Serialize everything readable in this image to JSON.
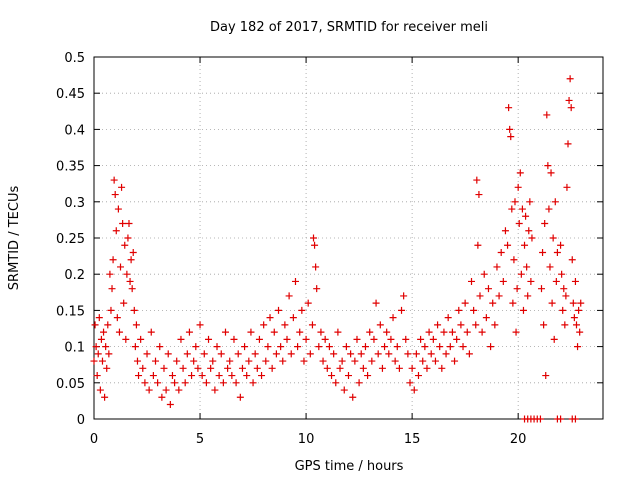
{
  "chart_data": {
    "type": "scatter",
    "title": "Day 182 of 2017, SRMTID for receiver meli",
    "xlabel": "GPS time / hours",
    "ylabel": "SRMTID / TECUs",
    "xlim": [
      0,
      24
    ],
    "ylim": [
      0,
      0.5
    ],
    "x_ticks": [
      0,
      5,
      10,
      15,
      20
    ],
    "x_tick_labels": [
      "0",
      "5",
      "10",
      "15",
      "20"
    ],
    "y_ticks": [
      0,
      0.05,
      0.1,
      0.15,
      0.2,
      0.25,
      0.3,
      0.35,
      0.4,
      0.45,
      0.5
    ],
    "y_tick_labels": [
      "0",
      "0.05",
      "0.1",
      "0.15",
      "0.2",
      "0.25",
      "0.3",
      "0.35",
      "0.4",
      "0.45",
      "0.5"
    ],
    "grid": true,
    "marker": "+",
    "color": "#e00000",
    "series": [
      {
        "points": [
          [
            0.0,
            0.08
          ],
          [
            0.05,
            0.13
          ],
          [
            0.1,
            0.1
          ],
          [
            0.15,
            0.06
          ],
          [
            0.2,
            0.09
          ],
          [
            0.25,
            0.14
          ],
          [
            0.3,
            0.04
          ],
          [
            0.35,
            0.11
          ],
          [
            0.4,
            0.08
          ],
          [
            0.45,
            0.12
          ],
          [
            0.5,
            0.03
          ],
          [
            0.55,
            0.1
          ],
          [
            0.6,
            0.07
          ],
          [
            0.65,
            0.13
          ],
          [
            0.7,
            0.09
          ],
          [
            0.75,
            0.2
          ],
          [
            0.8,
            0.15
          ],
          [
            0.85,
            0.18
          ],
          [
            0.9,
            0.22
          ],
          [
            0.95,
            0.33
          ],
          [
            1.0,
            0.31
          ],
          [
            1.05,
            0.26
          ],
          [
            1.1,
            0.14
          ],
          [
            1.15,
            0.29
          ],
          [
            1.2,
            0.12
          ],
          [
            1.25,
            0.21
          ],
          [
            1.3,
            0.32
          ],
          [
            1.35,
            0.27
          ],
          [
            1.4,
            0.16
          ],
          [
            1.45,
            0.24
          ],
          [
            1.5,
            0.11
          ],
          [
            1.55,
            0.2
          ],
          [
            1.6,
            0.25
          ],
          [
            1.65,
            0.27
          ],
          [
            1.7,
            0.19
          ],
          [
            1.75,
            0.22
          ],
          [
            1.8,
            0.18
          ],
          [
            1.85,
            0.23
          ],
          [
            1.9,
            0.15
          ],
          [
            1.95,
            0.1
          ],
          [
            2.0,
            0.13
          ],
          [
            2.05,
            0.08
          ],
          [
            2.1,
            0.06
          ],
          [
            2.2,
            0.11
          ],
          [
            2.3,
            0.07
          ],
          [
            2.4,
            0.05
          ],
          [
            2.5,
            0.09
          ],
          [
            2.6,
            0.04
          ],
          [
            2.7,
            0.12
          ],
          [
            2.8,
            0.06
          ],
          [
            2.9,
            0.08
          ],
          [
            3.0,
            0.05
          ],
          [
            3.1,
            0.1
          ],
          [
            3.2,
            0.03
          ],
          [
            3.3,
            0.07
          ],
          [
            3.4,
            0.04
          ],
          [
            3.5,
            0.09
          ],
          [
            3.6,
            0.02
          ],
          [
            3.7,
            0.06
          ],
          [
            3.8,
            0.05
          ],
          [
            3.9,
            0.08
          ],
          [
            4.0,
            0.04
          ],
          [
            4.1,
            0.11
          ],
          [
            4.2,
            0.07
          ],
          [
            4.3,
            0.05
          ],
          [
            4.4,
            0.09
          ],
          [
            4.5,
            0.12
          ],
          [
            4.6,
            0.06
          ],
          [
            4.7,
            0.08
          ],
          [
            4.8,
            0.1
          ],
          [
            4.9,
            0.07
          ],
          [
            5.0,
            0.13
          ],
          [
            5.1,
            0.06
          ],
          [
            5.2,
            0.09
          ],
          [
            5.3,
            0.05
          ],
          [
            5.4,
            0.11
          ],
          [
            5.5,
            0.07
          ],
          [
            5.6,
            0.08
          ],
          [
            5.7,
            0.04
          ],
          [
            5.8,
            0.1
          ],
          [
            5.9,
            0.06
          ],
          [
            6.0,
            0.09
          ],
          [
            6.1,
            0.05
          ],
          [
            6.2,
            0.12
          ],
          [
            6.3,
            0.07
          ],
          [
            6.4,
            0.08
          ],
          [
            6.5,
            0.06
          ],
          [
            6.6,
            0.11
          ],
          [
            6.7,
            0.05
          ],
          [
            6.8,
            0.09
          ],
          [
            6.9,
            0.03
          ],
          [
            7.0,
            0.07
          ],
          [
            7.1,
            0.1
          ],
          [
            7.2,
            0.06
          ],
          [
            7.3,
            0.08
          ],
          [
            7.4,
            0.12
          ],
          [
            7.5,
            0.05
          ],
          [
            7.6,
            0.09
          ],
          [
            7.7,
            0.07
          ],
          [
            7.8,
            0.11
          ],
          [
            7.9,
            0.06
          ],
          [
            8.0,
            0.13
          ],
          [
            8.1,
            0.08
          ],
          [
            8.2,
            0.1
          ],
          [
            8.3,
            0.14
          ],
          [
            8.4,
            0.07
          ],
          [
            8.5,
            0.12
          ],
          [
            8.6,
            0.09
          ],
          [
            8.7,
            0.15
          ],
          [
            8.8,
            0.1
          ],
          [
            8.9,
            0.08
          ],
          [
            9.0,
            0.13
          ],
          [
            9.1,
            0.11
          ],
          [
            9.2,
            0.17
          ],
          [
            9.3,
            0.09
          ],
          [
            9.4,
            0.14
          ],
          [
            9.5,
            0.19
          ],
          [
            9.6,
            0.1
          ],
          [
            9.7,
            0.12
          ],
          [
            9.8,
            0.15
          ],
          [
            9.9,
            0.08
          ],
          [
            10.0,
            0.11
          ],
          [
            10.1,
            0.16
          ],
          [
            10.2,
            0.09
          ],
          [
            10.3,
            0.13
          ],
          [
            10.35,
            0.25
          ],
          [
            10.4,
            0.24
          ],
          [
            10.45,
            0.21
          ],
          [
            10.5,
            0.18
          ],
          [
            10.6,
            0.1
          ],
          [
            10.7,
            0.12
          ],
          [
            10.8,
            0.08
          ],
          [
            10.9,
            0.11
          ],
          [
            11.0,
            0.07
          ],
          [
            11.1,
            0.1
          ],
          [
            11.2,
            0.06
          ],
          [
            11.3,
            0.09
          ],
          [
            11.4,
            0.05
          ],
          [
            11.5,
            0.12
          ],
          [
            11.6,
            0.07
          ],
          [
            11.7,
            0.08
          ],
          [
            11.8,
            0.04
          ],
          [
            11.9,
            0.1
          ],
          [
            12.0,
            0.06
          ],
          [
            12.1,
            0.09
          ],
          [
            12.2,
            0.03
          ],
          [
            12.3,
            0.08
          ],
          [
            12.4,
            0.11
          ],
          [
            12.5,
            0.05
          ],
          [
            12.6,
            0.09
          ],
          [
            12.7,
            0.07
          ],
          [
            12.8,
            0.1
          ],
          [
            12.9,
            0.06
          ],
          [
            13.0,
            0.12
          ],
          [
            13.1,
            0.08
          ],
          [
            13.2,
            0.11
          ],
          [
            13.3,
            0.16
          ],
          [
            13.4,
            0.09
          ],
          [
            13.5,
            0.13
          ],
          [
            13.6,
            0.07
          ],
          [
            13.7,
            0.1
          ],
          [
            13.8,
            0.12
          ],
          [
            13.9,
            0.09
          ],
          [
            14.0,
            0.11
          ],
          [
            14.1,
            0.14
          ],
          [
            14.2,
            0.08
          ],
          [
            14.3,
            0.1
          ],
          [
            14.4,
            0.07
          ],
          [
            14.5,
            0.15
          ],
          [
            14.6,
            0.17
          ],
          [
            14.7,
            0.11
          ],
          [
            14.8,
            0.09
          ],
          [
            14.9,
            0.05
          ],
          [
            15.0,
            0.07
          ],
          [
            15.1,
            0.04
          ],
          [
            15.2,
            0.09
          ],
          [
            15.3,
            0.06
          ],
          [
            15.4,
            0.11
          ],
          [
            15.5,
            0.08
          ],
          [
            15.6,
            0.1
          ],
          [
            15.7,
            0.07
          ],
          [
            15.8,
            0.12
          ],
          [
            15.9,
            0.09
          ],
          [
            16.0,
            0.11
          ],
          [
            16.1,
            0.08
          ],
          [
            16.2,
            0.13
          ],
          [
            16.3,
            0.1
          ],
          [
            16.4,
            0.07
          ],
          [
            16.5,
            0.12
          ],
          [
            16.6,
            0.09
          ],
          [
            16.7,
            0.14
          ],
          [
            16.8,
            0.1
          ],
          [
            16.9,
            0.12
          ],
          [
            17.0,
            0.08
          ],
          [
            17.1,
            0.11
          ],
          [
            17.2,
            0.15
          ],
          [
            17.3,
            0.13
          ],
          [
            17.4,
            0.1
          ],
          [
            17.5,
            0.16
          ],
          [
            17.6,
            0.12
          ],
          [
            17.7,
            0.09
          ],
          [
            17.8,
            0.19
          ],
          [
            17.9,
            0.15
          ],
          [
            18.0,
            0.13
          ],
          [
            18.05,
            0.33
          ],
          [
            18.1,
            0.24
          ],
          [
            18.15,
            0.31
          ],
          [
            18.2,
            0.17
          ],
          [
            18.3,
            0.12
          ],
          [
            18.4,
            0.2
          ],
          [
            18.5,
            0.14
          ],
          [
            18.6,
            0.18
          ],
          [
            18.7,
            0.1
          ],
          [
            18.8,
            0.16
          ],
          [
            18.9,
            0.13
          ],
          [
            19.0,
            0.21
          ],
          [
            19.1,
            0.17
          ],
          [
            19.2,
            0.23
          ],
          [
            19.3,
            0.19
          ],
          [
            19.4,
            0.26
          ],
          [
            19.5,
            0.24
          ],
          [
            19.55,
            0.43
          ],
          [
            19.6,
            0.4
          ],
          [
            19.65,
            0.39
          ],
          [
            19.7,
            0.29
          ],
          [
            19.75,
            0.16
          ],
          [
            19.8,
            0.22
          ],
          [
            19.85,
            0.3
          ],
          [
            19.9,
            0.12
          ],
          [
            19.95,
            0.18
          ],
          [
            20.0,
            0.32
          ],
          [
            20.05,
            0.27
          ],
          [
            20.1,
            0.34
          ],
          [
            20.15,
            0.2
          ],
          [
            20.2,
            0.29
          ],
          [
            20.25,
            0.15
          ],
          [
            20.3,
            0.24
          ],
          [
            20.35,
            0.28
          ],
          [
            20.4,
            0.21
          ],
          [
            20.45,
            0.17
          ],
          [
            20.5,
            0.26
          ],
          [
            20.55,
            0.3
          ],
          [
            20.6,
            0.19
          ],
          [
            20.65,
            0.25
          ],
          [
            21.1,
            0.18
          ],
          [
            21.15,
            0.23
          ],
          [
            21.2,
            0.13
          ],
          [
            21.25,
            0.27
          ],
          [
            21.3,
            0.06
          ],
          [
            21.35,
            0.42
          ],
          [
            21.4,
            0.35
          ],
          [
            21.45,
            0.29
          ],
          [
            21.5,
            0.21
          ],
          [
            21.55,
            0.34
          ],
          [
            21.6,
            0.16
          ],
          [
            21.65,
            0.25
          ],
          [
            21.7,
            0.11
          ],
          [
            21.75,
            0.3
          ],
          [
            21.8,
            0.19
          ],
          [
            21.85,
            0.23
          ],
          [
            22.0,
            0.24
          ],
          [
            22.05,
            0.2
          ],
          [
            22.1,
            0.15
          ],
          [
            22.15,
            0.18
          ],
          [
            22.2,
            0.13
          ],
          [
            22.25,
            0.17
          ],
          [
            22.3,
            0.32
          ],
          [
            22.35,
            0.38
          ],
          [
            22.4,
            0.44
          ],
          [
            22.45,
            0.47
          ],
          [
            22.5,
            0.43
          ],
          [
            22.55,
            0.22
          ],
          [
            22.6,
            0.16
          ],
          [
            22.65,
            0.14
          ],
          [
            22.7,
            0.19
          ],
          [
            22.75,
            0.13
          ],
          [
            22.8,
            0.1
          ],
          [
            22.85,
            0.15
          ],
          [
            22.9,
            0.12
          ],
          [
            22.95,
            0.16
          ],
          [
            20.3,
            0.0
          ],
          [
            20.45,
            0.0
          ],
          [
            20.6,
            0.0
          ],
          [
            20.75,
            0.0
          ],
          [
            20.9,
            0.0
          ],
          [
            21.05,
            0.0
          ],
          [
            21.85,
            0.0
          ],
          [
            22.0,
            0.0
          ],
          [
            22.55,
            0.0
          ],
          [
            22.7,
            0.0
          ]
        ]
      }
    ]
  }
}
